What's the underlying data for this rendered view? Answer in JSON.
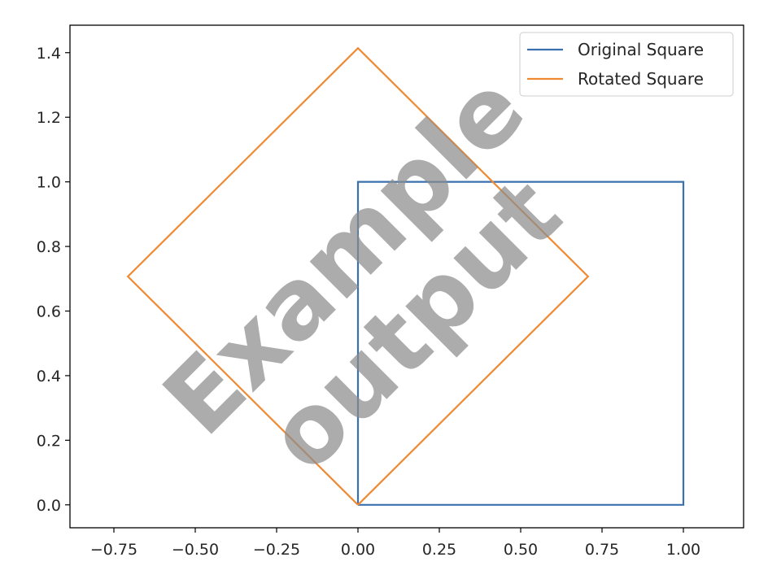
{
  "chart_data": {
    "type": "line",
    "title": "",
    "xlabel": "",
    "ylabel": "",
    "xlim": [
      -0.885,
      1.185
    ],
    "ylim": [
      -0.071,
      1.485
    ],
    "x_ticks": [
      -0.75,
      -0.5,
      -0.25,
      0.0,
      0.25,
      0.5,
      0.75,
      1.0
    ],
    "x_tick_labels": [
      "−0.75",
      "−0.50",
      "−0.25",
      "0.00",
      "0.25",
      "0.50",
      "0.75",
      "1.00"
    ],
    "y_ticks": [
      0.0,
      0.2,
      0.4,
      0.6,
      0.8,
      1.0,
      1.2,
      1.4
    ],
    "y_tick_labels": [
      "0.0",
      "0.2",
      "0.4",
      "0.6",
      "0.8",
      "1.0",
      "1.2",
      "1.4"
    ],
    "grid": false,
    "legend": "top-right",
    "series": [
      {
        "name": "Original Square",
        "color": "#3a70ad",
        "x": [
          0,
          1,
          1,
          0,
          0
        ],
        "y": [
          0,
          0,
          1,
          1,
          0
        ]
      },
      {
        "name": "Rotated Square",
        "color": "#ef8a33",
        "x": [
          0,
          0.707,
          0,
          -0.707,
          0
        ],
        "y": [
          0,
          0.707,
          1.414,
          0.707,
          0
        ]
      }
    ]
  },
  "watermark": {
    "line1": "Example",
    "line2": "output"
  }
}
